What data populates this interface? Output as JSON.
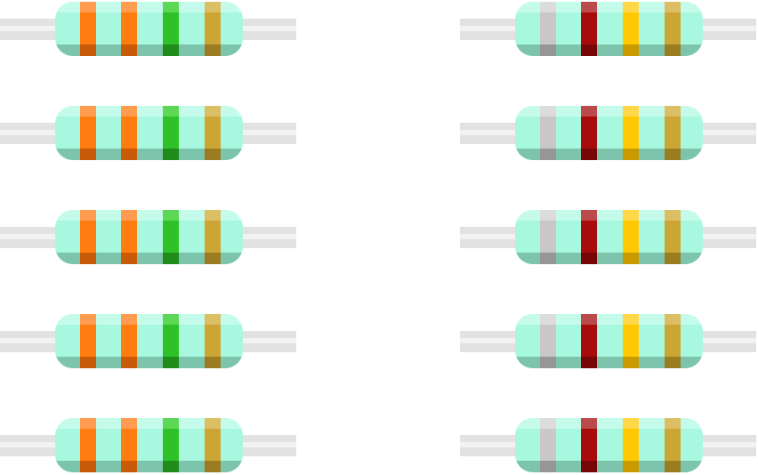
{
  "colors": {
    "background": "#ffffff",
    "body": "#a8f8e0",
    "body_highlight": "#c4fbeb",
    "body_shadow": "#7cc4ac",
    "lead": "#e2e2e2",
    "lead_highlight": "#f2f2f2"
  },
  "columns": [
    {
      "name": "left-column",
      "resistor_count": 5,
      "bands": [
        {
          "name": "orange",
          "color": "#ff7c10",
          "light": "#ff9c50",
          "dark": "#c85a08"
        },
        {
          "name": "orange",
          "color": "#ff7c10",
          "light": "#ff9c50",
          "dark": "#c85a08"
        },
        {
          "name": "green",
          "color": "#30c028",
          "light": "#5ed656",
          "dark": "#1f8c1a"
        },
        {
          "name": "gold",
          "color": "#cca634",
          "light": "#dcbf64",
          "dark": "#9c7c20"
        }
      ]
    },
    {
      "name": "right-column",
      "resistor_count": 5,
      "bands": [
        {
          "name": "gray",
          "color": "#c8c8c8",
          "light": "#dcdcdc",
          "dark": "#969696"
        },
        {
          "name": "red",
          "color": "#a60c0c",
          "light": "#bd4a4a",
          "dark": "#780606"
        },
        {
          "name": "yellow",
          "color": "#ffc800",
          "light": "#ffd84a",
          "dark": "#c89a00"
        },
        {
          "name": "gold",
          "color": "#cca634",
          "light": "#dcbf64",
          "dark": "#9c7c20"
        }
      ]
    }
  ]
}
